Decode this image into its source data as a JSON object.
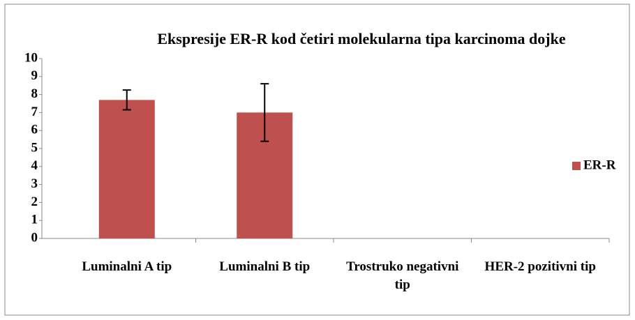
{
  "chart_data": {
    "type": "bar",
    "title": "Ekspresije ER-R kod četiri molekularna tipa karcinoma dojke",
    "categories": [
      "Luminalni A tip",
      "Luminalni B tip",
      "Trostruko negativni tip",
      "HER-2 pozitivni tip"
    ],
    "series": [
      {
        "name": "ER-R",
        "color": "#c0504d",
        "values": [
          7.7,
          7.0,
          0,
          0
        ],
        "errors": [
          0.55,
          1.6,
          null,
          null
        ]
      }
    ],
    "ylim": [
      0,
      10
    ],
    "yticks": [
      0,
      1,
      2,
      3,
      4,
      5,
      6,
      7,
      8,
      9,
      10
    ],
    "grid": false,
    "legend": "right"
  }
}
